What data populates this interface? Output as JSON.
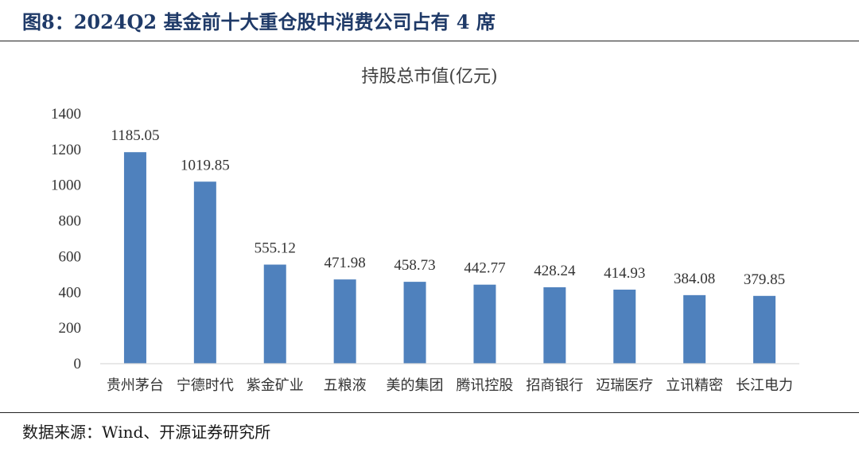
{
  "figure": {
    "title": "图8：2024Q2 基金前十大重仓股中消费公司占有 4 席",
    "source": "数据来源：Wind、开源证券研究所"
  },
  "chart_data": {
    "type": "bar",
    "title": "持股总市值(亿元)",
    "categories": [
      "贵州茅台",
      "宁德时代",
      "紫金矿业",
      "五粮液",
      "美的集团",
      "腾讯控股",
      "招商银行",
      "迈瑞医疗",
      "立讯精密",
      "长江电力"
    ],
    "values": [
      1185.05,
      1019.85,
      555.12,
      471.98,
      458.73,
      442.77,
      428.24,
      414.93,
      384.08,
      379.85
    ],
    "value_labels": [
      "1185.05",
      "1019.85",
      "555.12",
      "471.98",
      "458.73",
      "442.77",
      "428.24",
      "414.93",
      "384.08",
      "379.85"
    ],
    "ylim": [
      0,
      1400
    ],
    "yticks": [
      0,
      200,
      400,
      600,
      800,
      1000,
      1200,
      1400
    ],
    "grid": false,
    "legend": "none",
    "bar_color": "#4f81bd"
  }
}
